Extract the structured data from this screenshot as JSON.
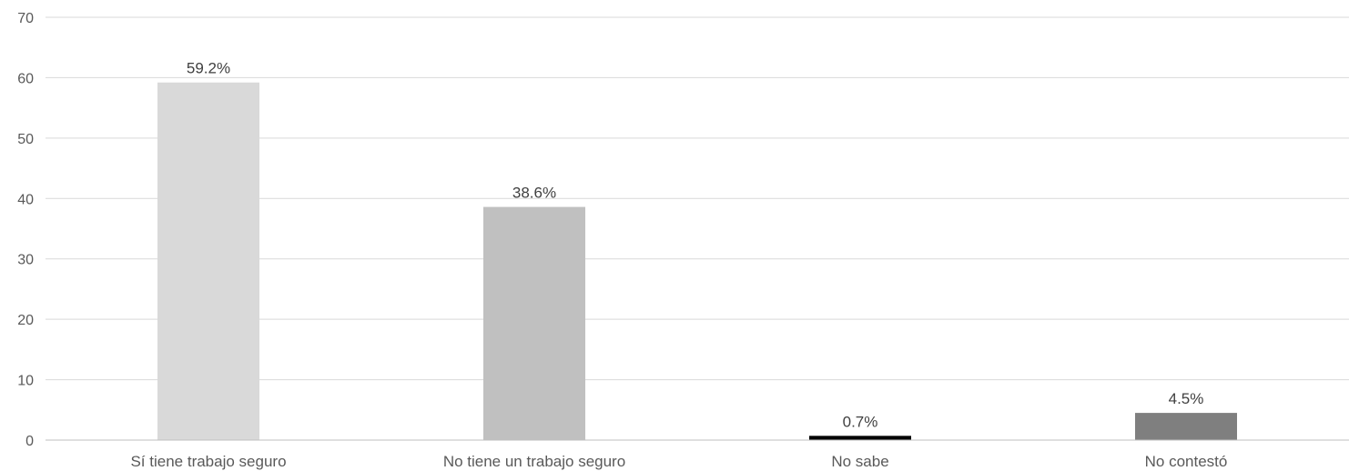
{
  "chart_data": {
    "type": "bar",
    "categories": [
      "Sí tiene trabajo seguro",
      "No tiene un trabajo seguro",
      "No sabe",
      "No contestó"
    ],
    "values": [
      59.2,
      38.6,
      0.7,
      4.5
    ],
    "data_labels": [
      "59.2%",
      "38.6%",
      "0.7%",
      "4.5%"
    ],
    "bar_colors": [
      "#d9d9d9",
      "#c0c0c0",
      "#000000",
      "#7f7f7f"
    ],
    "ylim": [
      0,
      70
    ],
    "yticks": [
      0,
      10,
      20,
      30,
      40,
      50,
      60,
      70
    ],
    "grid": true,
    "legend": "none",
    "title": "",
    "xlabel": "",
    "ylabel": ""
  }
}
